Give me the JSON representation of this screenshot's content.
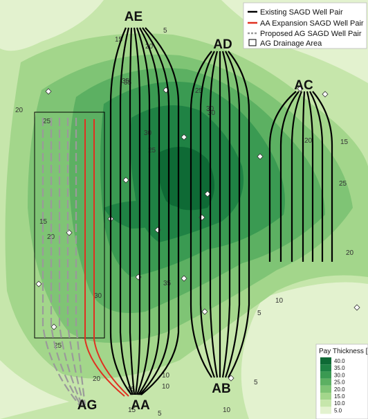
{
  "pads": {
    "ae": "AE",
    "ad": "AD",
    "ac": "AC",
    "ag": "AG",
    "aa": "AA",
    "ab": "AB"
  },
  "legend": {
    "existing": "Existing SAGD Well Pair",
    "expansion": "AA Expansion SAGD Well Pair",
    "proposed": "Proposed AG SAGD Well Pair",
    "drainage": "AG Drainage Area"
  },
  "scale": {
    "title": "Pay Thickness [m]",
    "levels": [
      "40.0",
      "35.0",
      "30.0",
      "25.0",
      "20.0",
      "15.0",
      "10.0",
      "5.0"
    ],
    "colors": [
      "#0e6a35",
      "#1f8244",
      "#3a9a52",
      "#5cb062",
      "#7fc475",
      "#a3d68b",
      "#c6e6ab",
      "#e3f2cf"
    ]
  },
  "contour_labels": [
    "5",
    "10",
    "15",
    "20",
    "25",
    "30",
    "35",
    "5",
    "15",
    "20",
    "25",
    "35",
    "25",
    "30",
    "20",
    "15",
    "25",
    "20",
    "5",
    "10",
    "35",
    "30",
    "15",
    "10",
    "20",
    "25",
    "30",
    "10",
    "5",
    "15",
    "20"
  ],
  "colors": {
    "existing": "#000000",
    "expansion": "#e03020",
    "proposed": "#9a9a9a"
  }
}
